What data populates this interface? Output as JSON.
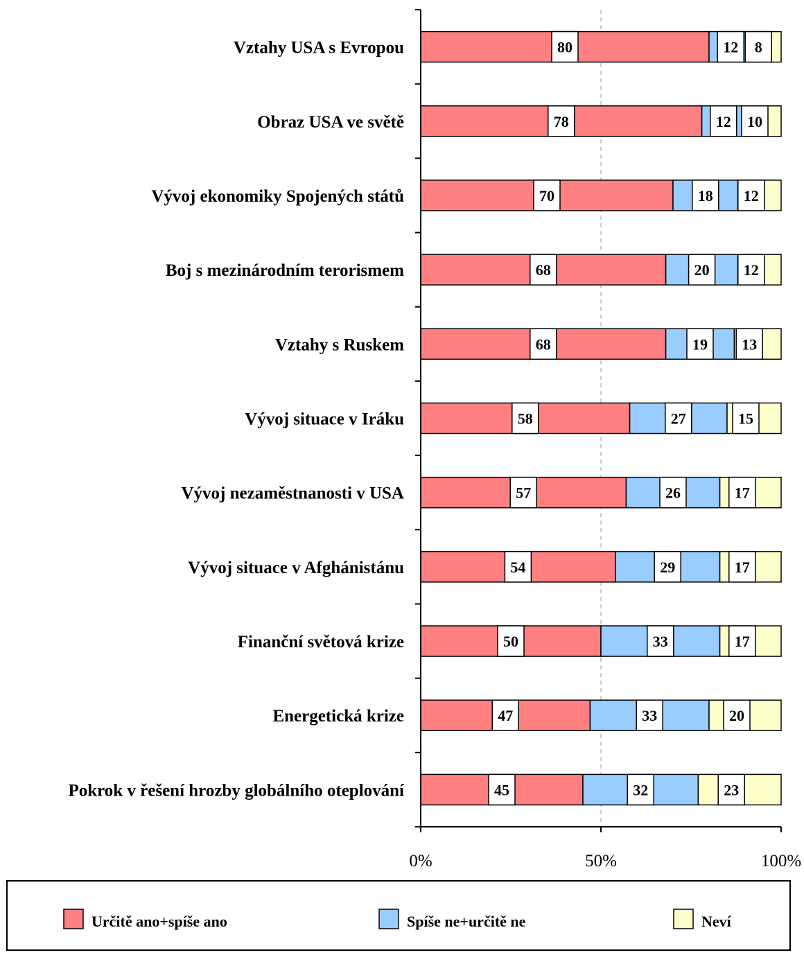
{
  "chart_data": {
    "type": "bar",
    "orientation": "horizontal",
    "stacked": true,
    "percent_stacked": true,
    "categories": [
      "Vztahy  USA s Evropou",
      "Obraz USA ve světě",
      "Vývoj ekonomiky Spojených států",
      "Boj s mezinárodním terorismem",
      "Vztahy s Ruskem",
      "Vývoj situace v Iráku",
      "Vývoj nezaměstnanosti v USA",
      "Vývoj situace v Afghánistánu",
      "Finanční světová krize",
      "Energetická krize",
      "Pokrok v řešení hrozby globálního oteplování"
    ],
    "series": [
      {
        "name": "Určitě ano+spíše ano",
        "color": "#ff8080",
        "values": [
          80,
          78,
          70,
          68,
          68,
          58,
          57,
          54,
          50,
          47,
          45
        ]
      },
      {
        "name": "Spíše ne+určitě ne",
        "color": "#99ccff",
        "values": [
          12,
          12,
          18,
          20,
          19,
          27,
          26,
          29,
          33,
          33,
          32
        ]
      },
      {
        "name": "Neví",
        "color": "#ffffcc",
        "values": [
          8,
          10,
          12,
          12,
          13,
          15,
          17,
          17,
          17,
          20,
          23
        ]
      }
    ],
    "xlim": [
      0,
      100
    ],
    "xticks": [
      "0%",
      "50%",
      "100%"
    ],
    "xticks_values": [
      0,
      50,
      100
    ],
    "reference_line": 50,
    "legend_position": "bottom",
    "data_labels": true
  }
}
